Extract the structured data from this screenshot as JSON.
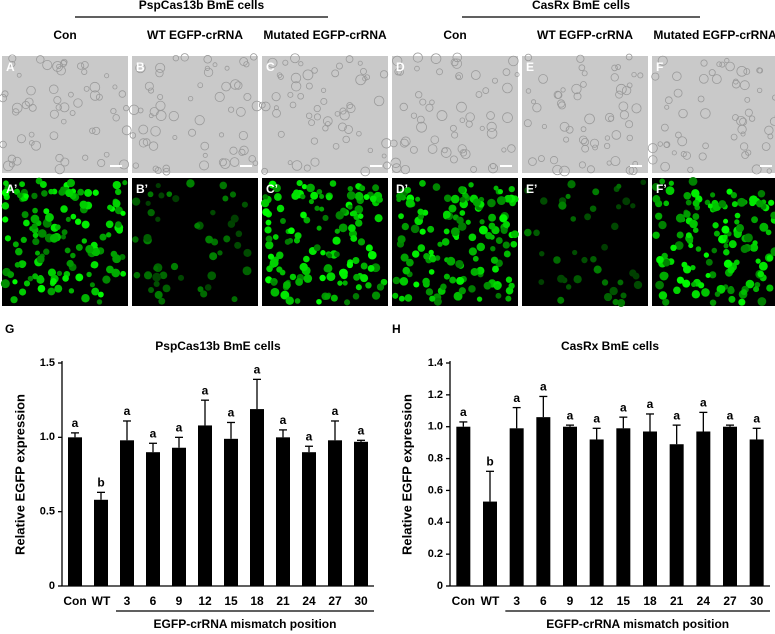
{
  "figure": {
    "group_labels": [
      "PspCas13b BmE cells",
      "CasRx BmE cells"
    ],
    "column_labels": [
      "Con",
      "WT EGFP-crRNA",
      "Mutated EGFP-crRNA",
      "Con",
      "WT EGFP-crRNA",
      "Mutated EGFP-crRNA"
    ],
    "panel_letters_top": [
      "A",
      "B",
      "C",
      "D",
      "E",
      "F"
    ],
    "panel_letters_bottom": [
      "A’",
      "B’",
      "C’",
      "D’",
      "E’",
      "F’"
    ]
  },
  "chart_data": [
    {
      "type": "bar",
      "panel_label": "G",
      "title": "PspCas13b BmE cells",
      "y_label": "Relative EGFP expression",
      "x_label": "EGFP-crRNA mismatch position",
      "categories": [
        "Con",
        "WT",
        "3",
        "6",
        "9",
        "12",
        "15",
        "18",
        "21",
        "24",
        "27",
        "30"
      ],
      "values": [
        1.0,
        0.58,
        0.98,
        0.9,
        0.93,
        1.08,
        0.99,
        1.19,
        1.0,
        0.9,
        0.98,
        0.97
      ],
      "errors": [
        0.03,
        0.05,
        0.13,
        0.06,
        0.07,
        0.17,
        0.11,
        0.2,
        0.05,
        0.04,
        0.13,
        0.01
      ],
      "annotations": [
        "a",
        "b",
        "a",
        "a",
        "a",
        "a",
        "a",
        "a",
        "a",
        "a",
        "a",
        "a"
      ],
      "color": "#000000",
      "ylim": [
        0,
        1.5
      ],
      "yticks": [
        0,
        0.5,
        {
          "value": 1.0,
          "label": "1.0"
        },
        1.5
      ]
    },
    {
      "type": "bar",
      "panel_label": "H",
      "title": "CasRx BmE cells",
      "y_label": "Relative EGFP expression",
      "x_label": "EGFP-crRNA mismatch position",
      "categories": [
        "Con",
        "WT",
        "3",
        "6",
        "9",
        "12",
        "15",
        "18",
        "21",
        "24",
        "27",
        "30"
      ],
      "values": [
        1.0,
        0.53,
        0.99,
        1.06,
        1.0,
        0.92,
        0.99,
        0.97,
        0.89,
        0.97,
        1.0,
        0.92
      ],
      "errors": [
        0.03,
        0.19,
        0.13,
        0.13,
        0.01,
        0.07,
        0.07,
        0.11,
        0.12,
        0.12,
        0.01,
        0.07
      ],
      "annotations": [
        "a",
        "b",
        "a",
        "a",
        "a",
        "a",
        "a",
        "a",
        "a",
        "a",
        "a",
        "a"
      ],
      "color": "#000000",
      "ylim": [
        0,
        1.4
      ],
      "yticks": [
        0,
        0.2,
        0.4,
        0.6,
        0.8,
        {
          "value": 1.0,
          "label": "1.0"
        },
        1.2,
        1.4
      ]
    }
  ]
}
